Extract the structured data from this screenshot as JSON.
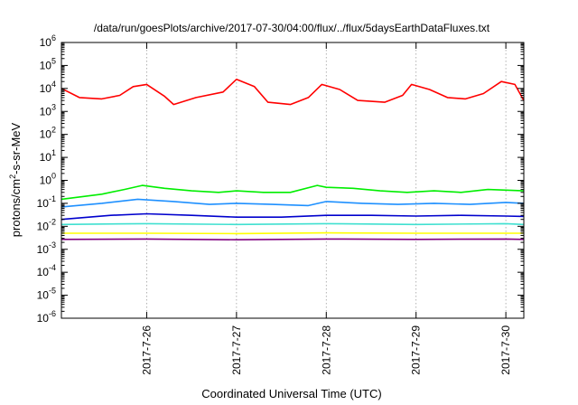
{
  "chart_data": {
    "type": "line",
    "title": "/data/run/goesPlots/archive/2017-07-30/04:00/flux/../flux/5daysEarthDataFluxes.txt",
    "xlabel": "Coordinated Universal Time (UTC)",
    "ylabel": "protons/cm²-s-sr-MeV",
    "ylabel_parts": {
      "pre": "protons/cm",
      "sup": "2",
      "post": "-s-sr-MeV"
    },
    "yscale": "log",
    "ylim_exp": [
      -6,
      6
    ],
    "ytick_exponents": [
      -6,
      -5,
      -4,
      -3,
      -2,
      -1,
      0,
      1,
      2,
      3,
      4,
      5,
      6
    ],
    "ytick_base": "10",
    "xlim_days": [
      25.05,
      30.2
    ],
    "xticks": [
      {
        "day": 26,
        "label": "2017-7-26"
      },
      {
        "day": 27,
        "label": "2017-7-27"
      },
      {
        "day": 28,
        "label": "2017-7-28"
      },
      {
        "day": 29,
        "label": "2017-7-29"
      },
      {
        "day": 30,
        "label": "2017-7-30"
      }
    ],
    "grid": true,
    "series": [
      {
        "color": "#ff0000",
        "x": [
          25.05,
          25.25,
          25.5,
          25.7,
          25.85,
          26.0,
          26.2,
          26.3,
          26.55,
          26.85,
          27.0,
          27.2,
          27.35,
          27.6,
          27.8,
          27.95,
          28.15,
          28.35,
          28.65,
          28.85,
          28.95,
          29.15,
          29.35,
          29.55,
          29.75,
          29.95,
          30.1,
          30.2
        ],
        "values": [
          10000,
          4000,
          3500,
          5000,
          12000,
          15000,
          4500,
          2000,
          4000,
          7000,
          25000,
          12000,
          2500,
          2000,
          4000,
          15000,
          9000,
          3000,
          2500,
          5000,
          15000,
          9000,
          4000,
          3500,
          6000,
          20000,
          15000,
          3000
        ]
      },
      {
        "color": "#00ee00",
        "x": [
          25.05,
          25.5,
          25.75,
          25.95,
          26.2,
          26.5,
          26.8,
          27.0,
          27.3,
          27.6,
          27.9,
          28.0,
          28.3,
          28.6,
          28.9,
          29.2,
          29.5,
          29.8,
          30.2
        ],
        "values": [
          0.15,
          0.25,
          0.4,
          0.6,
          0.45,
          0.35,
          0.3,
          0.35,
          0.3,
          0.3,
          0.6,
          0.5,
          0.45,
          0.35,
          0.3,
          0.35,
          0.3,
          0.4,
          0.35
        ]
      },
      {
        "color": "#1e90ff",
        "x": [
          25.05,
          25.5,
          25.9,
          26.3,
          26.7,
          27.0,
          27.4,
          27.8,
          28.0,
          28.4,
          28.8,
          29.2,
          29.6,
          30.0,
          30.2
        ],
        "values": [
          0.07,
          0.1,
          0.15,
          0.12,
          0.09,
          0.1,
          0.09,
          0.08,
          0.12,
          0.1,
          0.09,
          0.1,
          0.09,
          0.11,
          0.1
        ]
      },
      {
        "color": "#0000cd",
        "x": [
          25.05,
          25.6,
          26.0,
          26.5,
          27.0,
          27.5,
          28.0,
          28.5,
          29.0,
          29.5,
          30.0,
          30.2
        ],
        "values": [
          0.02,
          0.03,
          0.035,
          0.03,
          0.025,
          0.025,
          0.03,
          0.03,
          0.028,
          0.03,
          0.028,
          0.027
        ]
      },
      {
        "color": "#40e0d0",
        "x": [
          25.05,
          26.0,
          27.0,
          28.0,
          29.0,
          30.0,
          30.2
        ],
        "values": [
          0.012,
          0.013,
          0.012,
          0.013,
          0.012,
          0.013,
          0.012
        ]
      },
      {
        "color": "#ffff00",
        "x": [
          25.05,
          26.0,
          27.0,
          28.0,
          29.0,
          30.0,
          30.2
        ],
        "values": [
          0.005,
          0.005,
          0.0048,
          0.0052,
          0.005,
          0.005,
          0.005
        ]
      },
      {
        "color": "#800080",
        "x": [
          25.05,
          26.0,
          27.0,
          28.0,
          29.0,
          30.0,
          30.2
        ],
        "values": [
          0.0027,
          0.0028,
          0.0026,
          0.0028,
          0.0027,
          0.0028,
          0.0027
        ]
      }
    ]
  }
}
